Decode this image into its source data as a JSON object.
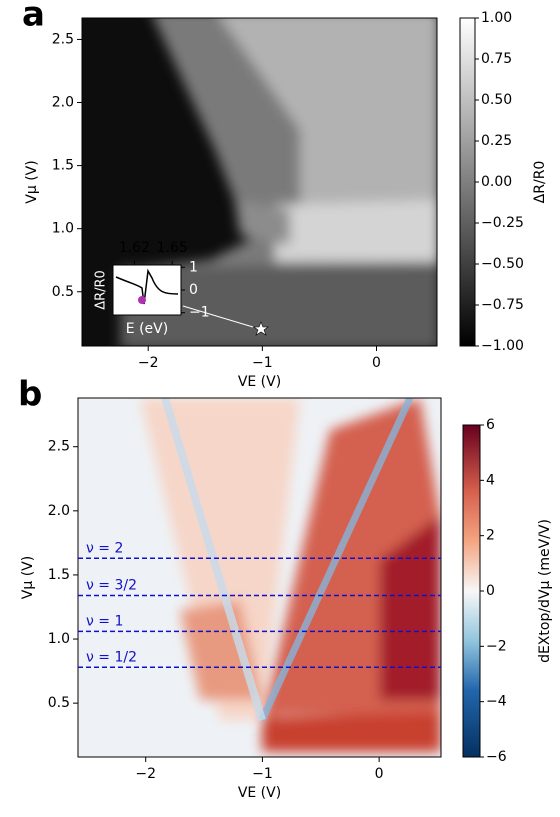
{
  "chart_data": [
    {
      "type": "heatmap",
      "panel_label": "a",
      "xlabel": "VE (V)",
      "ylabel": "Vμ (V)",
      "xlim": [
        -2.58,
        0.53
      ],
      "ylim": [
        0.07,
        2.67
      ],
      "xticks": [
        {
          "value": -2,
          "label": "−2"
        },
        {
          "value": -1,
          "label": "−1"
        },
        0
      ],
      "yticks": [
        0.5,
        {
          "value": 1.0,
          "label": "1.0"
        },
        1.5,
        {
          "value": 2.0,
          "label": "2.0"
        },
        2.5
      ],
      "colorbar": {
        "label": "ΔR/R0",
        "lim": [
          -1,
          1
        ],
        "ticks": [
          {
            "value": 1,
            "label": "1.00"
          },
          {
            "value": 0.75,
            "label": "0.75"
          },
          {
            "value": 0.5,
            "label": "0.50"
          },
          {
            "value": 0.25,
            "label": "0.25"
          },
          {
            "value": 0,
            "label": "0.00"
          },
          {
            "value": -0.25,
            "label": "−0.25"
          },
          {
            "value": -0.5,
            "label": "−0.50"
          },
          {
            "value": -0.75,
            "label": "−0.75"
          },
          {
            "value": -1,
            "label": "−1.00"
          }
        ]
      },
      "inset": {
        "xlabel": "E (eV)",
        "ylabel": "ΔR/R0",
        "xlim": [
          1.603,
          1.657
        ],
        "ylim": [
          -1.1,
          1.1
        ],
        "xticks": [
          1.62,
          1.65
        ],
        "yticks": [
          1,
          0,
          {
            "value": -1,
            "label": "−1"
          }
        ]
      }
    },
    {
      "type": "heatmap",
      "panel_label": "b",
      "xlabel": "VE (V)",
      "ylabel": "Vμ (V)",
      "xlim": [
        -2.58,
        0.53
      ],
      "ylim": [
        0.08,
        2.88
      ],
      "xticks": [
        {
          "value": -2,
          "label": "−2"
        },
        {
          "value": -1,
          "label": "−1"
        },
        0
      ],
      "yticks": [
        0.5,
        {
          "value": 1.0,
          "label": "1.0"
        },
        1.5,
        {
          "value": 2.0,
          "label": "2.0"
        },
        2.5
      ],
      "colorbar": {
        "label": "dEXtop/dVμ (meV/V)",
        "lim": [
          -6,
          6
        ],
        "ticks": [
          6,
          4,
          2,
          0,
          {
            "value": -2,
            "label": "−2"
          },
          {
            "value": -4,
            "label": "−4"
          },
          {
            "value": -6,
            "label": "−6"
          }
        ]
      },
      "hlines": [
        {
          "label": "ν = 2",
          "y": 1.63
        },
        {
          "label": "ν = 3/2",
          "y": 1.34
        },
        {
          "label": "ν = 1",
          "y": 1.06
        },
        {
          "label": "ν = 1/2",
          "y": 0.78
        }
      ]
    }
  ]
}
